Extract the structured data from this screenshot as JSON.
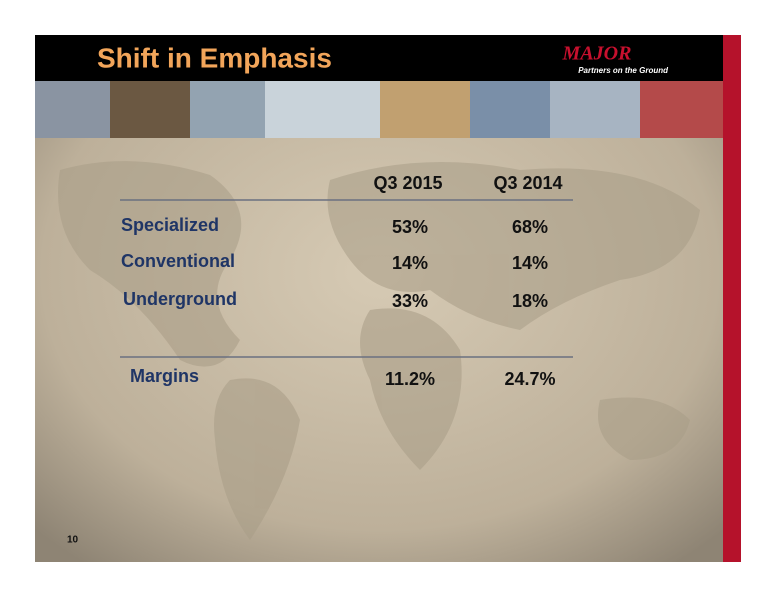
{
  "header": {
    "title": "Shift in Emphasis",
    "logo": "MAJOR",
    "tagline": "Partners on the Ground"
  },
  "table": {
    "columns": [
      "Q3 2015",
      "Q3 2014"
    ],
    "rows": [
      [
        "Specialized",
        "53%",
        "68%"
      ],
      [
        "Conventional",
        "14%",
        "14%"
      ],
      [
        "Underground",
        "33%",
        "18%"
      ]
    ],
    "summary": [
      "Margins",
      "11.2%",
      "24.7%"
    ]
  },
  "page_number": "10"
}
